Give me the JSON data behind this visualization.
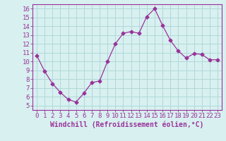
{
  "x": [
    0,
    1,
    2,
    3,
    4,
    5,
    6,
    7,
    8,
    9,
    10,
    11,
    12,
    13,
    14,
    15,
    16,
    17,
    18,
    19,
    20,
    21,
    22,
    23
  ],
  "y": [
    10.7,
    8.9,
    7.5,
    6.5,
    5.7,
    5.4,
    6.4,
    7.6,
    7.8,
    10.0,
    12.0,
    13.2,
    13.4,
    13.2,
    15.1,
    16.0,
    14.1,
    12.4,
    11.2,
    10.4,
    10.9,
    10.8,
    10.2,
    10.2
  ],
  "line_color": "#993399",
  "marker": "D",
  "marker_size": 2.5,
  "bg_color": "#d8f0f0",
  "grid_color": "#b0d8d8",
  "xlabel": "Windchill (Refroidissement éolien,°C)",
  "ylabel": "",
  "xlim": [
    -0.5,
    23.5
  ],
  "ylim": [
    4.5,
    16.5
  ],
  "xtick_labels": [
    "0",
    "1",
    "2",
    "3",
    "4",
    "5",
    "6",
    "7",
    "8",
    "9",
    "10",
    "11",
    "12",
    "13",
    "14",
    "15",
    "16",
    "17",
    "18",
    "19",
    "20",
    "21",
    "22",
    "23"
  ],
  "ytick_values": [
    5,
    6,
    7,
    8,
    9,
    10,
    11,
    12,
    13,
    14,
    15,
    16
  ],
  "tick_label_fontsize": 6.5,
  "xlabel_fontsize": 7,
  "axis_label_color": "#993399",
  "tick_color": "#993399",
  "spine_color": "#993399"
}
